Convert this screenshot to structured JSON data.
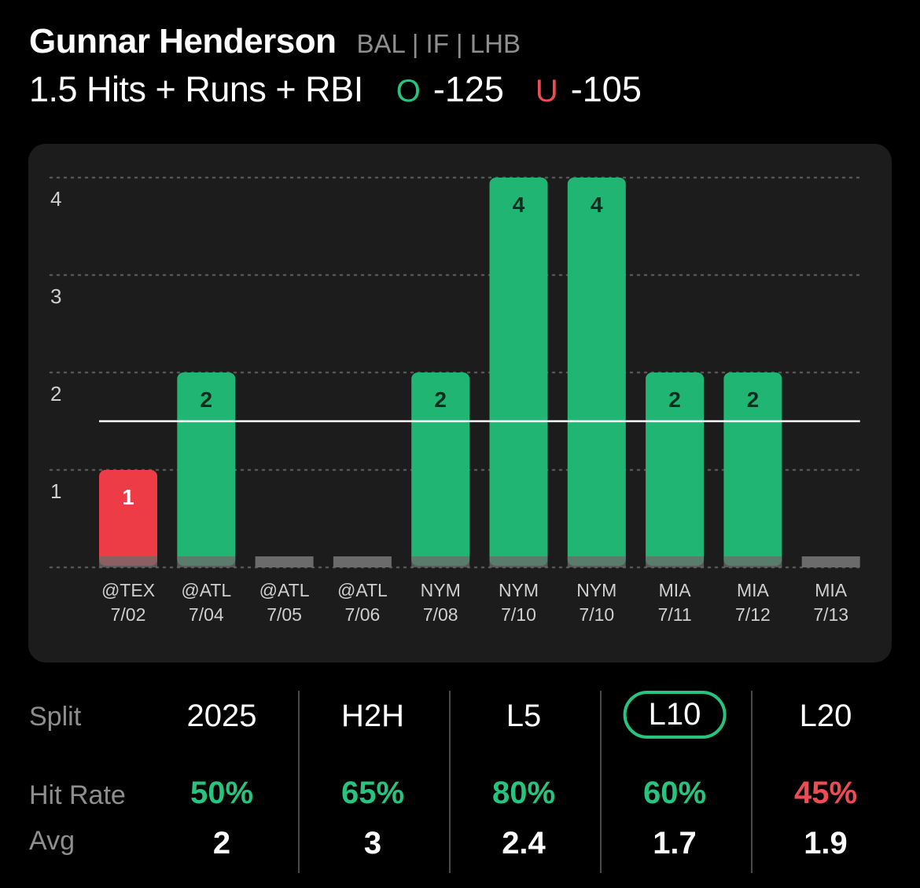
{
  "header": {
    "player_name": "Gunnar Henderson",
    "player_meta": "BAL | IF | LHB",
    "prop_line": "1.5 Hits + Runs + RBI",
    "over_letter": "O",
    "over_odds": "-125",
    "under_letter": "U",
    "under_odds": "-105"
  },
  "colors": {
    "over": "#26c47f",
    "under": "#ef4b55",
    "bar_hit": "#21b574",
    "bar_miss": "#ee3c47",
    "bar_base": "#6b6b6b",
    "card_bg": "#1c1c1c"
  },
  "chart_data": {
    "type": "bar",
    "title": "",
    "xlabel": "",
    "ylabel": "",
    "ylim": [
      0,
      4
    ],
    "yticks": [
      "1",
      "2",
      "3",
      "4"
    ],
    "grid": true,
    "line_value": 1.5,
    "games": [
      {
        "opp": "@TEX",
        "date": "7/02",
        "value": 1,
        "label": "1"
      },
      {
        "opp": "@ATL",
        "date": "7/04",
        "value": 2,
        "label": "2"
      },
      {
        "opp": "@ATL",
        "date": "7/05",
        "value": 0,
        "label": ""
      },
      {
        "opp": "@ATL",
        "date": "7/06",
        "value": 0,
        "label": ""
      },
      {
        "opp": "NYM",
        "date": "7/08",
        "value": 2,
        "label": "2"
      },
      {
        "opp": "NYM",
        "date": "7/10",
        "value": 4,
        "label": "4"
      },
      {
        "opp": "NYM",
        "date": "7/10",
        "value": 4,
        "label": "4"
      },
      {
        "opp": "MIA",
        "date": "7/11",
        "value": 2,
        "label": "2"
      },
      {
        "opp": "MIA",
        "date": "7/12",
        "value": 2,
        "label": "2"
      },
      {
        "opp": "MIA",
        "date": "7/13",
        "value": 0,
        "label": ""
      }
    ]
  },
  "splits": {
    "row_labels": {
      "split": "Split",
      "hit_rate": "Hit Rate",
      "avg": "Avg"
    },
    "columns": [
      {
        "name": "2025",
        "hit_rate": "50%",
        "rate_status": "over",
        "avg": "2",
        "selected": false
      },
      {
        "name": "H2H",
        "hit_rate": "65%",
        "rate_status": "over",
        "avg": "3",
        "selected": false
      },
      {
        "name": "L5",
        "hit_rate": "80%",
        "rate_status": "over",
        "avg": "2.4",
        "selected": false
      },
      {
        "name": "L10",
        "hit_rate": "60%",
        "rate_status": "over",
        "avg": "1.7",
        "selected": true
      },
      {
        "name": "L20",
        "hit_rate": "45%",
        "rate_status": "under",
        "avg": "1.9",
        "selected": false
      }
    ]
  }
}
